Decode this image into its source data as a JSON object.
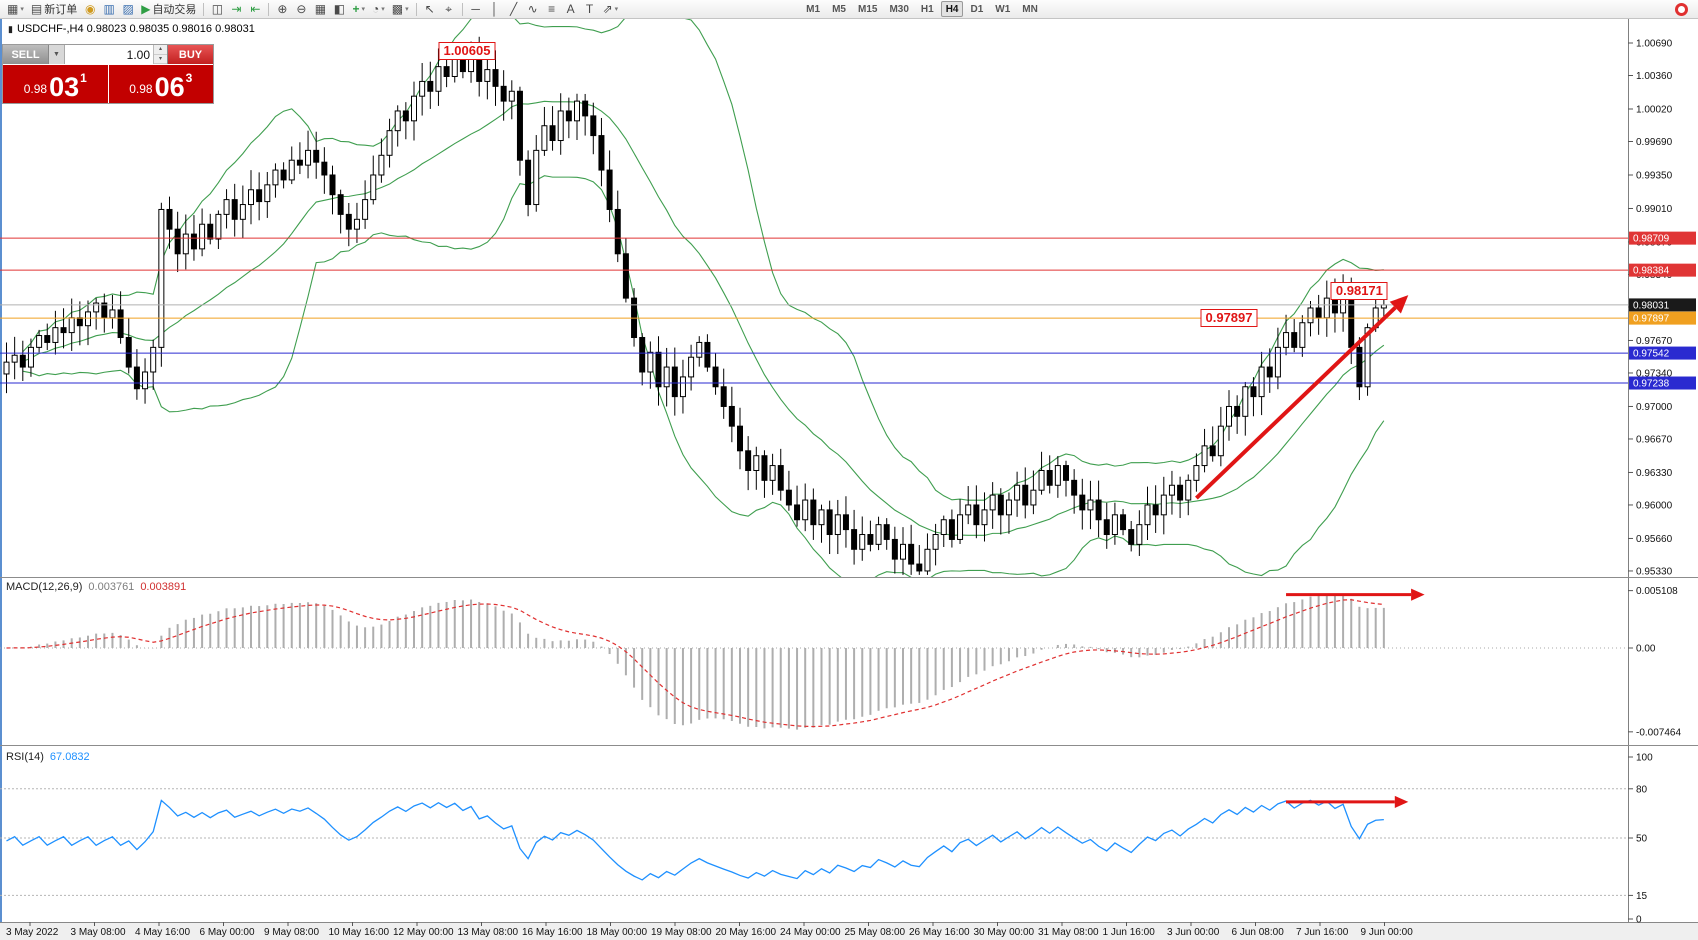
{
  "toolbar": {
    "items": [
      {
        "name": "new-chart",
        "glyph": "▦",
        "dropdown": true
      },
      {
        "name": "new-order",
        "glyph": "▤",
        "label": "新订单"
      },
      {
        "name": "mql5-community",
        "glyph": "◉",
        "color": "#d09a1e"
      },
      {
        "name": "market-watch",
        "glyph": "▥",
        "color": "#3a6fb0"
      },
      {
        "name": "data-window",
        "glyph": "▨",
        "color": "#3a6fb0"
      },
      {
        "name": "auto-trading",
        "glyph": "▶",
        "label": "自动交易",
        "color": "#2f9e44"
      },
      {
        "sep": true
      },
      {
        "name": "chart-bar-mode",
        "glyph": "◫"
      },
      {
        "name": "auto-scroll",
        "glyph": "⇥",
        "color": "#2f9e44"
      },
      {
        "name": "chart-shift",
        "glyph": "⇤",
        "color": "#2f9e44"
      },
      {
        "sep": true
      },
      {
        "name": "zoom-in",
        "glyph": "⊕"
      },
      {
        "name": "zoom-out",
        "glyph": "⊖"
      },
      {
        "name": "tile-windows",
        "glyph": "▦"
      },
      {
        "name": "arrange-windows",
        "glyph": "◧"
      },
      {
        "name": "add-indicator",
        "glyph": "+",
        "color": "#2f9e44",
        "dropdown": true
      },
      {
        "name": "periods",
        "glyph": "◔",
        "dropdown": true
      },
      {
        "name": "templates",
        "glyph": "▩",
        "dropdown": true
      },
      {
        "sep": true
      },
      {
        "name": "cursor",
        "glyph": "↖"
      },
      {
        "name": "crosshair",
        "glyph": "⌖"
      },
      {
        "sep": true
      },
      {
        "name": "horizontal-line",
        "glyph": "─"
      },
      {
        "name": "vertical-line",
        "glyph": "│"
      },
      {
        "name": "trendline",
        "glyph": "╱"
      },
      {
        "name": "channel",
        "glyph": "∿"
      },
      {
        "name": "fibonacci",
        "glyph": "≡"
      },
      {
        "name": "text-tool",
        "glyph": "A"
      },
      {
        "name": "label-tool",
        "glyph": "T"
      },
      {
        "name": "arrows-tool",
        "glyph": "⇗",
        "dropdown": true
      }
    ],
    "timeframes": [
      "M1",
      "M5",
      "M15",
      "M30",
      "H1",
      "H4",
      "D1",
      "W1",
      "MN"
    ],
    "active_timeframe": "H4"
  },
  "icons": {
    "dropdown": "▾",
    "sell_dropdown": "▼",
    "spin_up": "▴",
    "spin_down": "▾",
    "candle": "▮"
  },
  "chart": {
    "symbol_info": "USDCHF-,H4  0.98023 0.98035 0.98016 0.98031"
  },
  "trade_panel": {
    "sell_label": "SELL",
    "buy_label": "BUY",
    "volume": "1.00",
    "sell_price": {
      "base": "0.98",
      "big": "03",
      "sup": "1"
    },
    "buy_price": {
      "base": "0.98",
      "big": "06",
      "sup": "3"
    }
  },
  "price_axis": {
    "labels": [
      "1.00690",
      "1.00360",
      "1.00020",
      "0.99690",
      "0.99350",
      "0.99010",
      "0.98670",
      "0.98340",
      "0.98010",
      "0.97670",
      "0.97340",
      "0.97000",
      "0.96670",
      "0.96330",
      "0.96000",
      "0.95660",
      "0.95330"
    ]
  },
  "hlines": [
    {
      "price": 0.98709,
      "label": "0.98709",
      "color": "#e03535",
      "name": "resistance-line-1"
    },
    {
      "price": 0.98384,
      "label": "0.98384",
      "color": "#e03535",
      "name": "resistance-line-2"
    },
    {
      "price": 0.98031,
      "label": "0.98031",
      "color": "#b0b0b0",
      "badge_bg": "#1a1a1a",
      "name": "bid-price-line"
    },
    {
      "price": 0.97897,
      "label": "0.97897",
      "color": "#f0a020",
      "name": "pivot-line"
    },
    {
      "price": 0.97542,
      "label": "0.97542",
      "color": "#2a2ad0",
      "name": "support-line-1"
    },
    {
      "price": 0.97238,
      "label": "0.97238",
      "color": "#2a2ad0",
      "name": "support-line-2"
    }
  ],
  "annotations": {
    "labels": [
      {
        "text": "1.00605",
        "i": 56.5,
        "price": 1.00605,
        "name": "peak-price-label"
      },
      {
        "text": "0.97897",
        "i": 150,
        "price": 0.97897,
        "name": "pivot-price-label"
      },
      {
        "text": "0.98171",
        "i": 166,
        "price": 0.98171,
        "name": "target-price-label"
      }
    ],
    "trend_arrow": {
      "i1": 146,
      "p1": 0.9607,
      "i2": 172,
      "p2": 0.9813
    },
    "macd_arrow": {
      "i1": 157,
      "i2": 174,
      "value": 0.00475
    },
    "rsi_arrow": {
      "i1": 157,
      "i2": 172,
      "value": 72
    }
  },
  "macd": {
    "title": "MACD(12,26,9)",
    "main_value": "0.003761",
    "signal_value": "0.003891",
    "axis_labels": [
      {
        "text": "0.005108",
        "value": 0.005108
      },
      {
        "text": "0.00",
        "value": 0
      },
      {
        "text": "-0.007464",
        "value": -0.007464
      }
    ]
  },
  "rsi": {
    "title": "RSI(14)",
    "value": "67.0832",
    "axis_labels": [
      {
        "text": "100",
        "value": 100
      },
      {
        "text": "80",
        "value": 80
      },
      {
        "text": "50",
        "value": 50
      },
      {
        "text": "15",
        "value": 15
      },
      {
        "text": "0",
        "value": 0
      }
    ],
    "levels": [
      80,
      50,
      15
    ]
  },
  "time_axis": {
    "labels": [
      "3 May 2022",
      "3 May 08:00",
      "4 May 16:00",
      "6 May 00:00",
      "9 May 08:00",
      "10 May 16:00",
      "12 May 00:00",
      "13 May 08:00",
      "16 May 16:00",
      "18 May 00:00",
      "19 May 08:00",
      "20 May 16:00",
      "24 May 00:00",
      "25 May 08:00",
      "26 May 16:00",
      "30 May 00:00",
      "31 May 08:00",
      "1 Jun 16:00",
      "3 Jun 00:00",
      "6 Jun 08:00",
      "7 Jun 16:00",
      "9 Jun 00:00"
    ]
  },
  "colors": {
    "bull": "#ffffff",
    "bear": "#000000",
    "bb": "#3f9e4f",
    "macd_hist": "#aeaeae",
    "macd_signal": "#e03030",
    "rsi": "#1e90ff",
    "arrow": "#e01515"
  },
  "chart_data": {
    "type": "candlestick",
    "symbol": "USDCHF",
    "timeframe": "H4",
    "price_range": {
      "top": 1.00934,
      "bottom": 0.95268
    },
    "indicators": {
      "bollinger_period": 20,
      "macd": [
        12,
        26,
        9
      ],
      "rsi_period": 14
    },
    "closes": [
      0.9745,
      0.9752,
      0.974,
      0.976,
      0.9772,
      0.9765,
      0.978,
      0.9775,
      0.979,
      0.9782,
      0.9796,
      0.9805,
      0.979,
      0.9798,
      0.977,
      0.974,
      0.9718,
      0.9735,
      0.976,
      0.99,
      0.988,
      0.9855,
      0.9875,
      0.986,
      0.9885,
      0.987,
      0.9895,
      0.991,
      0.989,
      0.9905,
      0.992,
      0.9908,
      0.9925,
      0.994,
      0.993,
      0.995,
      0.9945,
      0.996,
      0.9948,
      0.9935,
      0.9915,
      0.9895,
      0.988,
      0.989,
      0.991,
      0.9935,
      0.9955,
      0.998,
      1.0,
      0.999,
      1.0015,
      1.003,
      1.002,
      1.0045,
      1.0035,
      1.0055,
      1.004,
      1.0058,
      1.003,
      1.0042,
      1.0025,
      1.001,
      1.002,
      0.995,
      0.9905,
      0.996,
      0.9985,
      0.997,
      1.0,
      0.999,
      1.001,
      0.9995,
      0.9975,
      0.994,
      0.99,
      0.9855,
      0.981,
      0.977,
      0.9735,
      0.9755,
      0.972,
      0.974,
      0.971,
      0.973,
      0.975,
      0.9765,
      0.974,
      0.972,
      0.97,
      0.968,
      0.9655,
      0.9635,
      0.965,
      0.9625,
      0.964,
      0.9615,
      0.96,
      0.9585,
      0.9605,
      0.958,
      0.9595,
      0.957,
      0.959,
      0.9575,
      0.9555,
      0.957,
      0.956,
      0.958,
      0.9565,
      0.9545,
      0.956,
      0.954,
      0.9533,
      0.9555,
      0.957,
      0.9585,
      0.9565,
      0.959,
      0.96,
      0.958,
      0.9595,
      0.961,
      0.959,
      0.9605,
      0.962,
      0.96,
      0.9615,
      0.9635,
      0.962,
      0.964,
      0.9625,
      0.961,
      0.9595,
      0.9605,
      0.9585,
      0.957,
      0.959,
      0.9575,
      0.956,
      0.958,
      0.96,
      0.959,
      0.961,
      0.962,
      0.9605,
      0.9625,
      0.964,
      0.966,
      0.965,
      0.968,
      0.97,
      0.969,
      0.972,
      0.971,
      0.974,
      0.973,
      0.976,
      0.9775,
      0.976,
      0.9785,
      0.98,
      0.979,
      0.981,
      0.9795,
      0.9815,
      0.976,
      0.972,
      0.978,
      0.98,
      0.98031
    ]
  }
}
